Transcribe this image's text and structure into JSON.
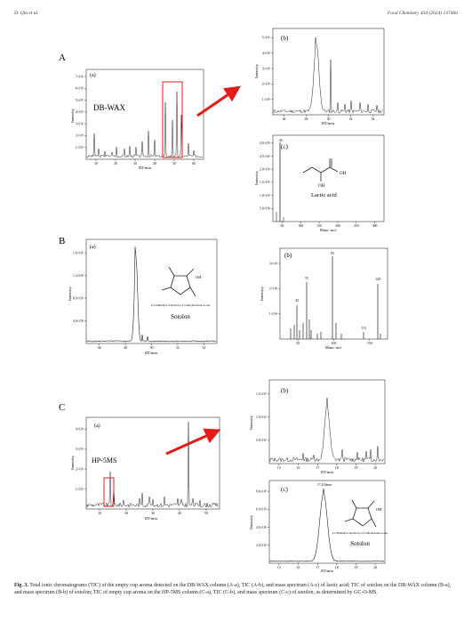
{
  "header": {
    "left": "D. Qin et al.",
    "right": "Food Chemistry 434 (2024) 137466"
  },
  "figure": {
    "panel_letters": [
      "A",
      "B",
      "C"
    ],
    "column_labels": {
      "A_b": "DB-WAX",
      "C_b": "HP-5MS"
    },
    "sub_labels": {
      "Aa": "(a)",
      "Ab": "(b)",
      "Ac": "(c)",
      "Ba": "(a)",
      "Bb": "(b)",
      "Ca": "(a)",
      "Cb": "(b)",
      "Cc": "(c)"
    },
    "axis": {
      "intensity": "Intensity",
      "rt": "RT/min",
      "mass": "Mass/ m/z"
    },
    "compounds": {
      "lactic_acid": "Lactic acid",
      "sotolon_full": "4,5-Dimethyl-3-hydroxy-2,5-dihydrofuran-2-one",
      "sotolon": "Sotolon",
      "oh": "OH"
    },
    "peak_labels": {
      "Bb": [
        "43",
        "55",
        "83",
        "128",
        "113"
      ],
      "Ac": "45",
      "Cc": "17.414min"
    }
  },
  "chart_data": [
    {
      "type": "line",
      "panel": "A-a",
      "title": "",
      "xlabel": "RT/min",
      "ylabel": "Intensity",
      "x_ticks": [
        "10",
        "20",
        "30",
        "40",
        "50",
        "60"
      ],
      "y_ticks": [
        "1×10⁷",
        "2×10⁷",
        "3×10⁷",
        "4×10⁷",
        "5×10⁷",
        "6×10⁷",
        "7×10⁷"
      ],
      "xlim": [
        5,
        62
      ],
      "ylim": [
        0,
        7
      ]
    },
    {
      "type": "line",
      "panel": "A-b",
      "xlabel": "RT/min",
      "ylabel": "Intensity",
      "x_ticks": [
        "46",
        "48",
        "50",
        "52",
        "54"
      ],
      "y_ticks": [
        "1×10⁶",
        "2×10⁶",
        "3×10⁶",
        "4×10⁶",
        "5×10⁶"
      ]
    },
    {
      "type": "bar",
      "panel": "A-c",
      "xlabel": "Mass/ m/z",
      "ylabel": "Intensity",
      "x_ticks": [
        "50",
        "100",
        "150",
        "200",
        "250",
        "300"
      ],
      "y_ticks": [
        "5.0×10⁵",
        "1.0×10⁶",
        "1.5×10⁶",
        "2.0×10⁶",
        "2.5×10⁶",
        "3.0×10⁶"
      ]
    },
    {
      "type": "line",
      "panel": "B-a",
      "xlabel": "RT/min",
      "ylabel": "Intensity",
      "x_ticks": [
        "46",
        "48",
        "50",
        "52",
        "54"
      ],
      "y_ticks": [
        "4.0×10⁵",
        "8.0×10⁵",
        "1.2×10⁶",
        "1.6×10⁶"
      ]
    },
    {
      "type": "bar",
      "panel": "B-b",
      "xlabel": "Mass/ m/z",
      "ylabel": "Intensity",
      "x_ticks": [
        "50",
        "100",
        "150"
      ],
      "y_ticks": [
        "1×10⁴",
        "2×10⁴",
        "3×10⁴"
      ]
    },
    {
      "type": "line",
      "panel": "C-a",
      "xlabel": "RT/min",
      "ylabel": "Intensity",
      "x_ticks": [
        "10",
        "20",
        "30",
        "40",
        "50"
      ],
      "y_ticks": [
        "1×10⁷",
        "2×10⁷",
        "3×10⁷",
        "4×10⁷"
      ]
    },
    {
      "type": "line",
      "panel": "C-b",
      "xlabel": "RT/min",
      "ylabel": "Intensity",
      "x_ticks": [
        "15",
        "16",
        "17",
        "18",
        "19",
        "20"
      ],
      "y_ticks": [
        "5.0×10⁶",
        "1.0×10⁷",
        "1.5×10⁷"
      ]
    },
    {
      "type": "line",
      "panel": "C-c",
      "xlabel": "RT/min",
      "ylabel": "Intensity",
      "x_ticks": [
        "15",
        "16",
        "17",
        "18",
        "19",
        "20"
      ],
      "y_ticks": [
        "2.0×10⁵",
        "4.0×10⁵",
        "6.0×10⁵",
        "8.0×10⁵"
      ]
    }
  ],
  "caption": {
    "label": "Fig. 3.",
    "text": "Total ionic chromatograms (TIC) of the empty cup aroma detected on the DB-WAX column (A-a), TIC (A-b), and mass spectrum (A-c) of lactic acid; TIC of sotolon on the DB-WAX column (B-a), and mass spectrum (B-b) of sotolon; TIC of empty cup aroma on the HP-5MS column (C-a), TIC (C-b), and mass spectrum (C-c) of sotolon, as determined by GC-O-MS."
  }
}
